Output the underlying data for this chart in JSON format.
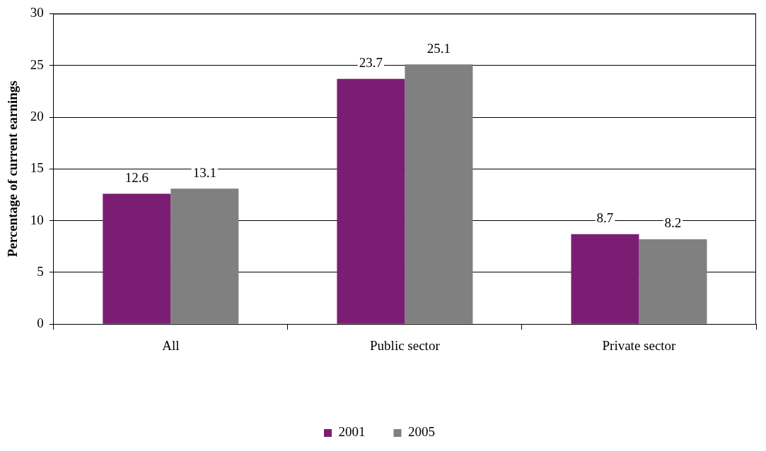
{
  "chart_data": {
    "type": "bar",
    "ylabel": "Percentage of current earnings",
    "categories": [
      "All",
      "Public sector",
      "Private sector"
    ],
    "series": [
      {
        "name": "2001",
        "color": "#7b1e73",
        "values": [
          12.6,
          23.7,
          8.7
        ]
      },
      {
        "name": "2005",
        "color": "#808080",
        "values": [
          13.1,
          25.1,
          8.2
        ]
      }
    ],
    "ylim": [
      0,
      30
    ],
    "yticks": [
      0,
      5,
      10,
      15,
      20,
      25,
      30
    ],
    "grid": "y",
    "legend": "bottom",
    "data_labels": true
  }
}
